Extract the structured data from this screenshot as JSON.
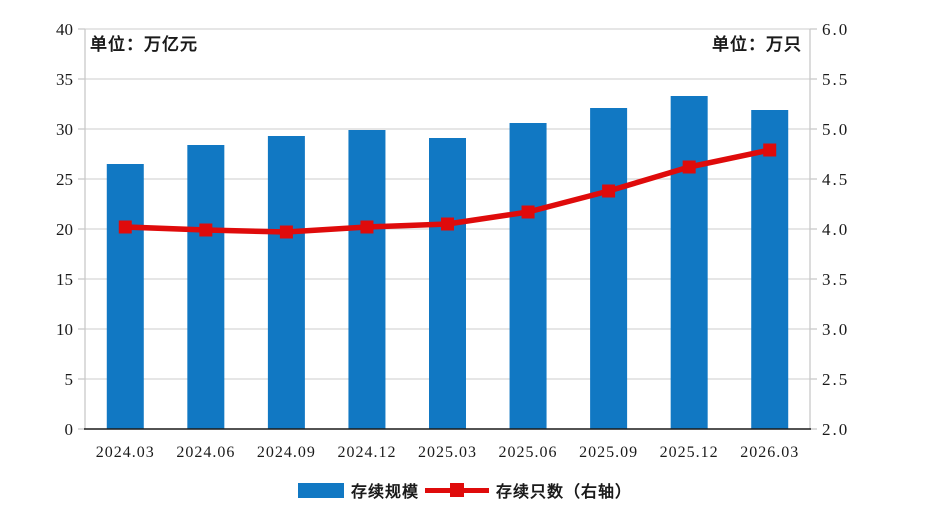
{
  "units": {
    "left": "单位：万亿元",
    "right": "单位：万只"
  },
  "legend": {
    "bar_label": "存续规模",
    "line_label": "存续只数（右轴）"
  },
  "colors": {
    "bar": "#1178C3",
    "line": "#DF0B0B",
    "grid": "#D6D6D6",
    "border": "#C9C9C9",
    "axis": "#1A1A1A",
    "text": "#1A1A1A"
  },
  "chart_data": {
    "type": "bar+line",
    "categories": [
      "2024.03",
      "2024.06",
      "2024.09",
      "2024.12",
      "2025.03",
      "2025.06",
      "2025.09",
      "2025.12",
      "2026.03"
    ],
    "series": [
      {
        "name": "存续规模",
        "type": "bar",
        "axis": "left",
        "unit": "万亿元",
        "color": "#1178C3",
        "values": [
          26.5,
          28.4,
          29.3,
          29.9,
          29.1,
          30.6,
          32.1,
          33.3,
          31.9
        ]
      },
      {
        "name": "存续只数（右轴）",
        "type": "line",
        "axis": "right",
        "unit": "万只",
        "color": "#DF0B0B",
        "marker": "square",
        "values": [
          4.02,
          3.99,
          3.97,
          4.02,
          4.05,
          4.17,
          4.38,
          4.62,
          4.79
        ]
      }
    ],
    "left_axis": {
      "label": "单位：万亿元",
      "min": 0,
      "max": 40,
      "step": 5,
      "ticks": [
        "0",
        "5",
        "10",
        "15",
        "20",
        "25",
        "30",
        "35",
        "40"
      ]
    },
    "right_axis": {
      "label": "单位：万只",
      "min": 2.0,
      "max": 6.0,
      "step": 0.5,
      "ticks": [
        "2.0",
        "2.5",
        "3.0",
        "3.5",
        "4.0",
        "4.5",
        "5.0",
        "5.5",
        "6.0"
      ]
    },
    "grid": true,
    "legend_position": "bottom"
  }
}
